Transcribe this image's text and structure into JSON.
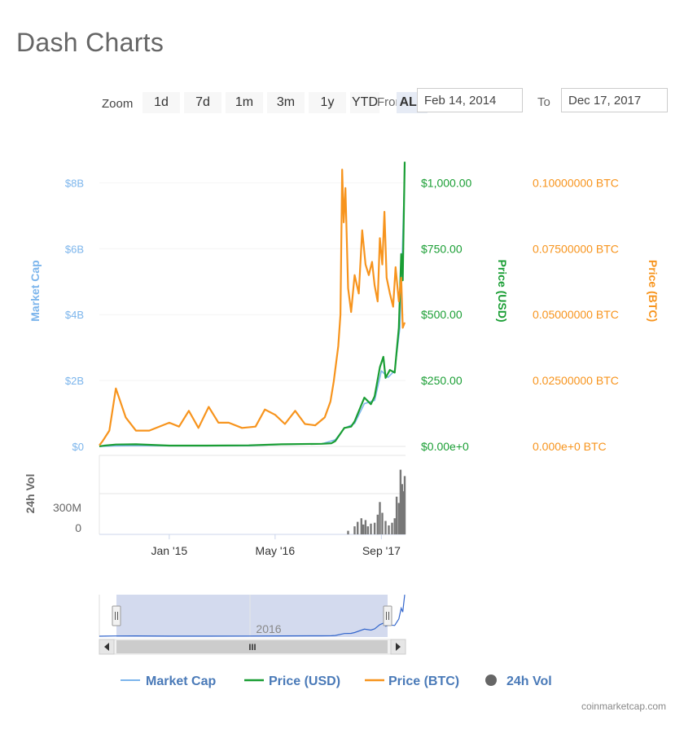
{
  "page": {
    "title": "Dash Charts",
    "credit": "coinmarketcap.com"
  },
  "toolbar": {
    "zoom_label": "Zoom",
    "buttons": [
      "1d",
      "7d",
      "1m",
      "3m",
      "1y",
      "YTD",
      "ALL"
    ],
    "selected": "ALL",
    "from_label": "From",
    "from_value": "Feb 14, 2014",
    "to_label": "To",
    "to_value": "Dec 17, 2017"
  },
  "colors": {
    "market_cap": "#7cb5ec",
    "price_usd": "#1a9e34",
    "price_btc": "#f7941d",
    "volume": "#777777",
    "navigator_fill": "#c4cde8"
  },
  "chart_data": {
    "type": "line",
    "x_range": [
      "2014-02-14",
      "2017-12-17"
    ],
    "x_ticks": [
      "Jan '15",
      "May '16",
      "Sep '17"
    ],
    "axes": {
      "market_cap": {
        "label": "Market Cap",
        "ticks": [
          "$0",
          "$2B",
          "$4B",
          "$6B",
          "$8B"
        ],
        "range": [
          0,
          8500000000
        ]
      },
      "price_usd": {
        "label": "Price (USD)",
        "ticks": [
          "$0.00e+0",
          "$250.00",
          "$500.00",
          "$750.00",
          "$1,000.00"
        ],
        "range": [
          0,
          1060
        ]
      },
      "price_btc": {
        "label": "Price (BTC)",
        "ticks": [
          "0.000e+0 BTC",
          "0.02500000 BTC",
          "0.05000000 BTC",
          "0.07500000 BTC",
          "0.10000000 BTC"
        ],
        "range": [
          0,
          0.106
        ]
      },
      "volume": {
        "label": "24h Vol",
        "ticks": [
          "0",
          "300M"
        ],
        "range": [
          0,
          880000000
        ]
      }
    },
    "series": [
      {
        "name": "Market Cap",
        "axis": "market_cap",
        "values": [
          [
            "2014-02-14",
            0
          ],
          [
            "2014-05-01",
            15000000
          ],
          [
            "2014-08-01",
            25000000
          ],
          [
            "2015-01-01",
            15000000
          ],
          [
            "2015-06-01",
            15000000
          ],
          [
            "2016-01-01",
            20000000
          ],
          [
            "2016-06-01",
            60000000
          ],
          [
            "2016-12-01",
            80000000
          ],
          [
            "2017-02-01",
            200000000
          ],
          [
            "2017-03-15",
            550000000
          ],
          [
            "2017-05-01",
            700000000
          ],
          [
            "2017-06-15",
            1300000000
          ],
          [
            "2017-08-01",
            1400000000
          ],
          [
            "2017-09-01",
            2300000000
          ],
          [
            "2017-10-01",
            2100000000
          ],
          [
            "2017-11-01",
            2300000000
          ],
          [
            "2017-11-25",
            3600000000
          ],
          [
            "2017-12-05",
            5700000000
          ],
          [
            "2017-12-17",
            8400000000
          ]
        ]
      },
      {
        "name": "Price (USD)",
        "axis": "price_usd",
        "values": [
          [
            "2014-02-14",
            0.3
          ],
          [
            "2014-03-10",
            3
          ],
          [
            "2014-05-01",
            7
          ],
          [
            "2014-08-01",
            8
          ],
          [
            "2015-01-01",
            3
          ],
          [
            "2015-06-01",
            3
          ],
          [
            "2016-01-01",
            4
          ],
          [
            "2016-06-01",
            8
          ],
          [
            "2016-12-01",
            10
          ],
          [
            "2017-01-15",
            12
          ],
          [
            "2017-02-01",
            20
          ],
          [
            "2017-03-15",
            70
          ],
          [
            "2017-04-15",
            75
          ],
          [
            "2017-05-01",
            95
          ],
          [
            "2017-06-15",
            185
          ],
          [
            "2017-07-15",
            160
          ],
          [
            "2017-08-01",
            190
          ],
          [
            "2017-08-25",
            300
          ],
          [
            "2017-09-10",
            340
          ],
          [
            "2017-09-20",
            260
          ],
          [
            "2017-10-10",
            290
          ],
          [
            "2017-11-01",
            280
          ],
          [
            "2017-11-20",
            450
          ],
          [
            "2017-12-01",
            730
          ],
          [
            "2017-12-08",
            630
          ],
          [
            "2017-12-17",
            1080
          ]
        ]
      },
      {
        "name": "Price (BTC)",
        "axis": "price_btc",
        "values": [
          [
            "2014-02-14",
            0.0004
          ],
          [
            "2014-03-01",
            0.002
          ],
          [
            "2014-04-01",
            0.006
          ],
          [
            "2014-05-01",
            0.022
          ],
          [
            "2014-06-15",
            0.011
          ],
          [
            "2014-08-01",
            0.006
          ],
          [
            "2014-10-01",
            0.006
          ],
          [
            "2015-01-01",
            0.009
          ],
          [
            "2015-02-15",
            0.0075
          ],
          [
            "2015-04-01",
            0.0135
          ],
          [
            "2015-05-15",
            0.007
          ],
          [
            "2015-07-01",
            0.015
          ],
          [
            "2015-08-15",
            0.009
          ],
          [
            "2015-10-01",
            0.009
          ],
          [
            "2015-12-01",
            0.007
          ],
          [
            "2016-02-01",
            0.0075
          ],
          [
            "2016-03-15",
            0.014
          ],
          [
            "2016-05-01",
            0.012
          ],
          [
            "2016-06-15",
            0.0085
          ],
          [
            "2016-08-01",
            0.0135
          ],
          [
            "2016-09-15",
            0.0085
          ],
          [
            "2016-11-01",
            0.008
          ],
          [
            "2016-12-15",
            0.011
          ],
          [
            "2017-01-10",
            0.017
          ],
          [
            "2017-01-25",
            0.0245
          ],
          [
            "2017-02-15",
            0.038
          ],
          [
            "2017-02-25",
            0.05
          ],
          [
            "2017-03-05",
            0.105
          ],
          [
            "2017-03-12",
            0.085
          ],
          [
            "2017-03-20",
            0.098
          ],
          [
            "2017-04-01",
            0.06
          ],
          [
            "2017-04-15",
            0.051
          ],
          [
            "2017-05-01",
            0.065
          ],
          [
            "2017-05-20",
            0.058
          ],
          [
            "2017-06-05",
            0.082
          ],
          [
            "2017-06-20",
            0.069
          ],
          [
            "2017-07-05",
            0.065
          ],
          [
            "2017-07-20",
            0.07
          ],
          [
            "2017-08-01",
            0.061
          ],
          [
            "2017-08-15",
            0.055
          ],
          [
            "2017-08-25",
            0.079
          ],
          [
            "2017-09-05",
            0.069
          ],
          [
            "2017-09-15",
            0.089
          ],
          [
            "2017-09-25",
            0.064
          ],
          [
            "2017-10-10",
            0.058
          ],
          [
            "2017-10-25",
            0.053
          ],
          [
            "2017-11-05",
            0.068
          ],
          [
            "2017-11-20",
            0.055
          ],
          [
            "2017-12-01",
            0.064
          ],
          [
            "2017-12-08",
            0.045
          ],
          [
            "2017-12-17",
            0.047
          ]
        ]
      }
    ],
    "volume_series": {
      "name": "24h Vol",
      "values": [
        [
          "2017-04-01",
          40000000
        ],
        [
          "2017-05-01",
          90000000
        ],
        [
          "2017-05-15",
          140000000
        ],
        [
          "2017-06-01",
          180000000
        ],
        [
          "2017-06-10",
          110000000
        ],
        [
          "2017-06-20",
          160000000
        ],
        [
          "2017-07-01",
          90000000
        ],
        [
          "2017-07-15",
          120000000
        ],
        [
          "2017-08-01",
          130000000
        ],
        [
          "2017-08-15",
          220000000
        ],
        [
          "2017-08-25",
          360000000
        ],
        [
          "2017-09-05",
          240000000
        ],
        [
          "2017-09-20",
          150000000
        ],
        [
          "2017-10-05",
          100000000
        ],
        [
          "2017-10-20",
          130000000
        ],
        [
          "2017-11-01",
          180000000
        ],
        [
          "2017-11-10",
          420000000
        ],
        [
          "2017-11-20",
          350000000
        ],
        [
          "2017-11-28",
          720000000
        ],
        [
          "2017-12-05",
          560000000
        ],
        [
          "2017-12-10",
          480000000
        ],
        [
          "2017-12-17",
          650000000
        ]
      ]
    },
    "navigator": {
      "label": "2016",
      "scroll_glyph": "III"
    },
    "legend": [
      "Market Cap",
      "Price (USD)",
      "Price (BTC)",
      "24h Vol"
    ]
  }
}
